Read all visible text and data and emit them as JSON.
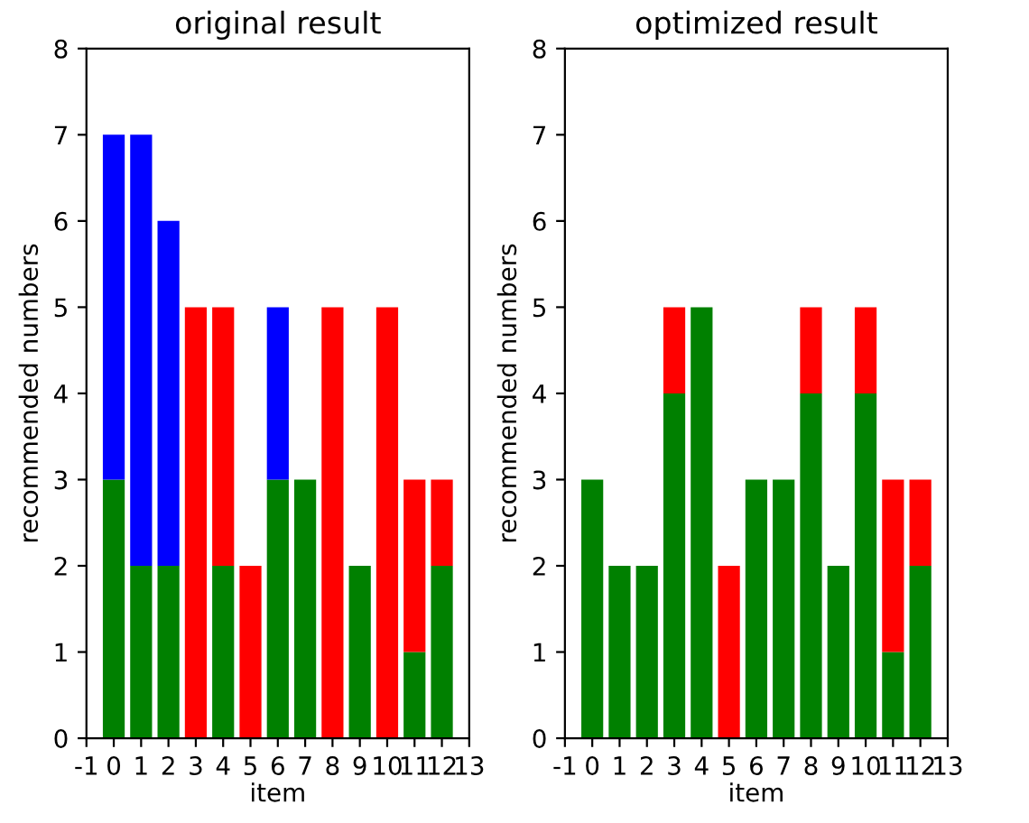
{
  "chart_data": [
    {
      "type": "bar",
      "title": "original result",
      "xlabel": "item",
      "ylabel": "recommended numbers",
      "stacked": true,
      "x": [
        0,
        1,
        2,
        3,
        4,
        5,
        6,
        7,
        8,
        9,
        10,
        11,
        12
      ],
      "series": [
        {
          "color": "#008000",
          "values": [
            3,
            2,
            2,
            null,
            2,
            null,
            3,
            3,
            null,
            2,
            null,
            1,
            2
          ]
        },
        {
          "color": "#0000ff",
          "values": [
            4,
            5,
            4,
            null,
            null,
            null,
            2,
            null,
            null,
            null,
            null,
            null,
            null
          ]
        },
        {
          "color": "#ff0000",
          "values": [
            null,
            null,
            null,
            5,
            3,
            2,
            null,
            null,
            5,
            null,
            5,
            2,
            1
          ]
        }
      ],
      "xlim": [
        -1,
        13
      ],
      "xticks": [
        -1,
        0,
        1,
        2,
        3,
        4,
        5,
        6,
        7,
        8,
        9,
        10,
        11,
        12,
        13
      ],
      "ylim": [
        0,
        8
      ],
      "yticks": [
        0,
        1,
        2,
        3,
        4,
        5,
        6,
        7,
        8
      ],
      "grid": false
    },
    {
      "type": "bar",
      "title": "optimized result",
      "xlabel": "item",
      "ylabel": "recommended numbers",
      "stacked": true,
      "x": [
        0,
        1,
        2,
        3,
        4,
        5,
        6,
        7,
        8,
        9,
        10,
        11,
        12
      ],
      "series": [
        {
          "color": "#008000",
          "values": [
            3,
            2,
            2,
            4,
            5,
            null,
            3,
            3,
            4,
            2,
            4,
            1,
            2
          ]
        },
        {
          "color": "#ff0000",
          "values": [
            null,
            null,
            null,
            1,
            null,
            2,
            null,
            null,
            1,
            null,
            1,
            2,
            1
          ]
        }
      ],
      "xlim": [
        -1,
        13
      ],
      "xticks": [
        -1,
        0,
        1,
        2,
        3,
        4,
        5,
        6,
        7,
        8,
        9,
        10,
        11,
        12,
        13
      ],
      "ylim": [
        0,
        8
      ],
      "yticks": [
        0,
        1,
        2,
        3,
        4,
        5,
        6,
        7,
        8
      ],
      "grid": false
    }
  ]
}
